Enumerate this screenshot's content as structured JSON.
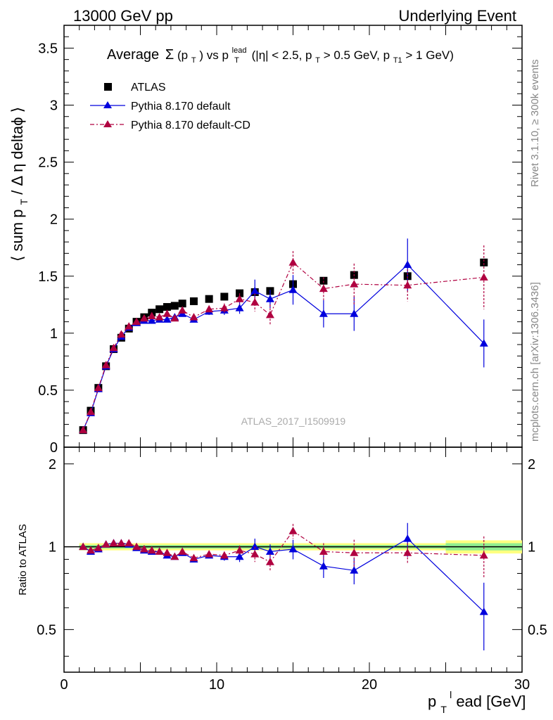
{
  "header": {
    "left": "13000 GeV pp",
    "right": "Underlying Event"
  },
  "side_text": {
    "rivet": "Rivet 3.1.10, ≥ 300k events",
    "mcplots": "mcplots.cern.ch [arXiv:1306.3436]"
  },
  "watermark": "ATLAS_2017_I1509919",
  "title": {
    "prefix": "Average",
    "sigma": "Σ",
    "arg": "(p",
    "arg_sub": "T",
    "arg_close": ")",
    "vs": " vs p",
    "vs_sup": "lead",
    "vs_sub": "T",
    "cuts1": " (|η| < 2.5, p",
    "cuts1_sub": "T",
    "cuts2": " > 0.5 GeV, p",
    "cuts2_sub": "T1",
    "cuts3": " > 1 GeV)"
  },
  "axes": {
    "ylabel_main": "⟨ sum p",
    "ylabel_main_sub": "T",
    "ylabel_main_rest": " / Δ η deltaϕ ⟩",
    "ylabel_ratio": "Ratio to ATLAS",
    "xlabel_p": "p",
    "xlabel_sub": "T",
    "xlabel_sup": "l",
    "xlabel_rest": "ead [GeV]"
  },
  "chart_data": {
    "type": "scatter",
    "x_range": [
      0,
      30
    ],
    "main_ylim": [
      0,
      3.7
    ],
    "ratio_ylim": [
      0.35,
      2.3
    ],
    "main_yticks": [
      "0",
      "0.5",
      "1",
      "1.5",
      "2",
      "2.5",
      "3",
      "3.5"
    ],
    "ratio_yticks": [
      "0.5",
      "1",
      "2"
    ],
    "xticks": [
      "0",
      "10",
      "20",
      "30"
    ],
    "legend": {
      "placement": "top-left",
      "entries": [
        "ATLAS",
        "Pythia 8.170 default",
        "Pythia 8.170 default-CD"
      ]
    },
    "x": [
      1.25,
      1.75,
      2.25,
      2.75,
      3.25,
      3.75,
      4.25,
      4.75,
      5.25,
      5.75,
      6.25,
      6.75,
      7.25,
      7.75,
      8.5,
      9.5,
      10.5,
      11.5,
      12.5,
      13.5,
      15.0,
      17.0,
      19.0,
      22.5,
      27.5
    ],
    "series": [
      {
        "name": "ATLAS",
        "color": "#000000",
        "marker": "square",
        "values": [
          0.15,
          0.32,
          0.52,
          0.71,
          0.86,
          0.96,
          1.04,
          1.1,
          1.14,
          1.18,
          1.21,
          1.23,
          1.24,
          1.26,
          1.28,
          1.3,
          1.32,
          1.35,
          1.36,
          1.37,
          1.43,
          1.46,
          1.51,
          1.5,
          1.62
        ],
        "bands": [
          {
            "from": 1.0,
            "to": 25.0,
            "yellow": 0.03,
            "green": 0.015
          },
          {
            "from": 25.0,
            "to": 30.0,
            "yellow": 0.055,
            "green": 0.03
          }
        ]
      },
      {
        "name": "Pythia 8.170 default",
        "color": "#0000dd",
        "marker": "triangle",
        "values": [
          0.15,
          0.3,
          0.51,
          0.71,
          0.86,
          0.97,
          1.05,
          1.09,
          1.11,
          1.11,
          1.12,
          1.12,
          1.14,
          1.17,
          1.12,
          1.19,
          1.2,
          1.22,
          1.37,
          1.3,
          1.38,
          1.17,
          1.17,
          1.6,
          0.91
        ],
        "errors": [
          0,
          0,
          0,
          0,
          0,
          0,
          0,
          0,
          0,
          0,
          0,
          0,
          0,
          0,
          0.02,
          0.03,
          0.04,
          0.05,
          0.1,
          0.08,
          0.13,
          0.12,
          0.15,
          0.23,
          0.21
        ],
        "ratio": [
          1.0,
          0.96,
          0.98,
          1.02,
          1.03,
          1.03,
          1.02,
          0.99,
          0.97,
          0.96,
          0.96,
          0.93,
          0.92,
          0.95,
          0.9,
          0.93,
          0.92,
          0.92,
          1.0,
          0.96,
          0.98,
          0.85,
          0.82,
          1.07,
          0.58
        ],
        "ratio_errors": [
          0,
          0,
          0,
          0,
          0,
          0,
          0,
          0,
          0,
          0,
          0,
          0,
          0,
          0,
          0.02,
          0.02,
          0.03,
          0.04,
          0.07,
          0.06,
          0.08,
          0.08,
          0.09,
          0.15,
          0.16
        ]
      },
      {
        "name": "Pythia 8.170 default-CD",
        "color": "#b00040",
        "marker": "triangle",
        "values": [
          0.15,
          0.31,
          0.52,
          0.72,
          0.87,
          0.99,
          1.06,
          1.1,
          1.13,
          1.15,
          1.14,
          1.17,
          1.13,
          1.2,
          1.14,
          1.21,
          1.22,
          1.3,
          1.27,
          1.16,
          1.62,
          1.39,
          1.43,
          1.42,
          1.49
        ],
        "errors": [
          0,
          0,
          0,
          0,
          0,
          0,
          0,
          0,
          0,
          0,
          0,
          0,
          0,
          0,
          0.02,
          0.03,
          0.04,
          0.05,
          0.08,
          0.09,
          0.1,
          0.1,
          0.18,
          0.14,
          0.28
        ],
        "ratio": [
          1.0,
          0.97,
          0.99,
          1.02,
          1.03,
          1.03,
          1.03,
          1.0,
          0.98,
          0.97,
          0.96,
          0.95,
          0.92,
          0.96,
          0.91,
          0.94,
          0.93,
          0.97,
          0.94,
          0.88,
          1.14,
          0.96,
          0.95,
          0.95,
          0.93
        ],
        "ratio_errors": [
          0,
          0,
          0,
          0,
          0,
          0,
          0,
          0,
          0,
          0,
          0,
          0,
          0,
          0,
          0.02,
          0.02,
          0.03,
          0.04,
          0.06,
          0.06,
          0.07,
          0.07,
          0.11,
          0.08,
          0.16
        ]
      }
    ]
  }
}
